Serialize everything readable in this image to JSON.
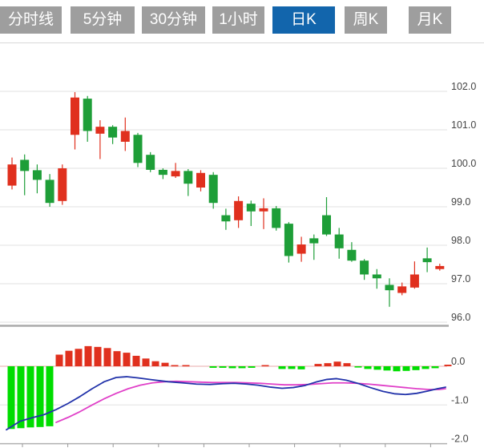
{
  "tabs": {
    "items": [
      {
        "label": "分时线",
        "active": false
      },
      {
        "label": "5分钟",
        "active": false
      },
      {
        "label": "30分钟",
        "active": false
      },
      {
        "label": "1小时",
        "active": false
      },
      {
        "label": "日K",
        "active": true
      },
      {
        "label": "周K",
        "active": false
      },
      {
        "label": "月K",
        "active": false
      }
    ],
    "active_bg": "#1265ac",
    "inactive_bg": "#9e9e9e",
    "text_color": "#ffffff"
  },
  "colors": {
    "up_red": "#e0301e",
    "down_green": "#1e9e38",
    "macd_bar_green": "#00dd00",
    "macd_bar_red": "#e0301e",
    "dif_line_blue": "#2233aa",
    "dea_line_magenta": "#e040c8",
    "gridline": "#e2e2e2",
    "zero_line": "#e8a8a8",
    "panel_border": "#aaaaaa",
    "axis_line": "#b0b0b0",
    "label_text": "#444444"
  },
  "price_panel": {
    "y_labels": [
      "102.0",
      "101.0",
      "100.0",
      "99.0",
      "98.0",
      "97.0",
      "96.0"
    ],
    "y_values": [
      102,
      101,
      100,
      99,
      98,
      97,
      96
    ]
  },
  "macd_panel": {
    "y_labels": [
      "0.0",
      "-1.0",
      "-2.0"
    ],
    "y_values": [
      0,
      -1,
      -2
    ]
  },
  "chart_data": {
    "type": "candlestick-with-macd",
    "price": {
      "ylim": [
        95.9,
        103.2
      ],
      "grid": true,
      "up_color_meaning": "red = close above open (CN convention)",
      "ohlc": [
        [
          99.55,
          100.28,
          99.45,
          100.1
        ],
        [
          100.22,
          100.36,
          99.3,
          99.93
        ],
        [
          99.95,
          100.1,
          99.35,
          99.7
        ],
        [
          99.7,
          99.85,
          99.0,
          99.1
        ],
        [
          99.15,
          100.1,
          99.05,
          100.0
        ],
        [
          100.87,
          101.98,
          100.49,
          101.84
        ],
        [
          101.81,
          101.88,
          100.69,
          100.97
        ],
        [
          100.9,
          101.25,
          100.24,
          101.08
        ],
        [
          101.08,
          101.12,
          100.63,
          100.8
        ],
        [
          100.69,
          101.32,
          100.45,
          100.97
        ],
        [
          100.87,
          100.92,
          100.03,
          100.14
        ],
        [
          100.35,
          100.42,
          99.9,
          99.96
        ],
        [
          99.96,
          100.0,
          99.72,
          99.83
        ],
        [
          99.79,
          100.14,
          99.75,
          99.93
        ],
        [
          99.93,
          99.98,
          99.28,
          99.6
        ],
        [
          99.5,
          99.95,
          99.4,
          99.88
        ],
        [
          99.83,
          99.9,
          98.95,
          99.1
        ],
        [
          98.78,
          98.95,
          98.4,
          98.62
        ],
        [
          98.65,
          99.27,
          98.45,
          99.15
        ],
        [
          99.08,
          99.16,
          98.5,
          98.88
        ],
        [
          98.88,
          99.22,
          98.42,
          98.96
        ],
        [
          98.96,
          99.02,
          98.38,
          98.45
        ],
        [
          98.56,
          98.6,
          97.55,
          97.72
        ],
        [
          97.78,
          98.22,
          97.57,
          98.02
        ],
        [
          98.18,
          98.28,
          97.62,
          98.05
        ],
        [
          98.78,
          99.25,
          98.24,
          98.28
        ],
        [
          98.28,
          98.45,
          97.65,
          97.92
        ],
        [
          97.88,
          98.08,
          97.57,
          97.6
        ],
        [
          97.6,
          97.64,
          97.1,
          97.24
        ],
        [
          97.24,
          97.38,
          96.87,
          97.14
        ],
        [
          96.97,
          97.14,
          96.4,
          96.83
        ],
        [
          96.76,
          97.03,
          96.7,
          96.93
        ],
        [
          96.9,
          97.58,
          96.87,
          97.24
        ],
        [
          97.66,
          97.94,
          97.3,
          97.56
        ],
        [
          97.38,
          97.52,
          97.34,
          97.46
        ]
      ]
    },
    "macd": {
      "ylim": [
        -2.1,
        0.6
      ],
      "bars": [
        [
          14,
          -1.62
        ],
        [
          26,
          -1.6
        ],
        [
          38,
          -1.58
        ],
        [
          50,
          -1.57
        ],
        [
          62,
          -1.55
        ],
        [
          74,
          0.3
        ],
        [
          86,
          0.4
        ],
        [
          98,
          0.45
        ],
        [
          110,
          0.52
        ],
        [
          122,
          0.5
        ],
        [
          134,
          0.47
        ],
        [
          146,
          0.39
        ],
        [
          158,
          0.35
        ],
        [
          170,
          0.27
        ],
        [
          182,
          0.2
        ],
        [
          194,
          0.13
        ],
        [
          206,
          0.09
        ],
        [
          218,
          0.03
        ],
        [
          232,
          0.03
        ],
        [
          266,
          -0.04
        ],
        [
          278,
          -0.04
        ],
        [
          290,
          -0.05
        ],
        [
          302,
          -0.05
        ],
        [
          314,
          -0.04
        ],
        [
          331,
          0.03
        ],
        [
          352,
          -0.07
        ],
        [
          364,
          -0.07
        ],
        [
          376,
          -0.08
        ],
        [
          397,
          0.06
        ],
        [
          409,
          0.08
        ],
        [
          421,
          0.12
        ],
        [
          433,
          0.08
        ],
        [
          447,
          -0.03
        ],
        [
          459,
          -0.07
        ],
        [
          471,
          -0.09
        ],
        [
          483,
          -0.11
        ],
        [
          495,
          -0.13
        ],
        [
          507,
          -0.12
        ],
        [
          519,
          -0.1
        ],
        [
          531,
          -0.07
        ],
        [
          543,
          -0.05
        ],
        [
          559,
          0.04
        ]
      ],
      "dif": [
        [
          8,
          -1.64
        ],
        [
          25,
          -1.42
        ],
        [
          40,
          -1.33
        ],
        [
          55,
          -1.25
        ],
        [
          70,
          -1.12
        ],
        [
          85,
          -0.96
        ],
        [
          100,
          -0.78
        ],
        [
          115,
          -0.58
        ],
        [
          130,
          -0.4
        ],
        [
          145,
          -0.29
        ],
        [
          158,
          -0.27
        ],
        [
          172,
          -0.3
        ],
        [
          190,
          -0.35
        ],
        [
          210,
          -0.4
        ],
        [
          228,
          -0.43
        ],
        [
          245,
          -0.46
        ],
        [
          262,
          -0.47
        ],
        [
          278,
          -0.45
        ],
        [
          292,
          -0.44
        ],
        [
          308,
          -0.46
        ],
        [
          322,
          -0.49
        ],
        [
          338,
          -0.54
        ],
        [
          352,
          -0.57
        ],
        [
          366,
          -0.55
        ],
        [
          380,
          -0.5
        ],
        [
          394,
          -0.41
        ],
        [
          408,
          -0.34
        ],
        [
          420,
          -0.32
        ],
        [
          432,
          -0.36
        ],
        [
          448,
          -0.45
        ],
        [
          462,
          -0.55
        ],
        [
          478,
          -0.65
        ],
        [
          492,
          -0.71
        ],
        [
          506,
          -0.73
        ],
        [
          520,
          -0.7
        ],
        [
          534,
          -0.64
        ],
        [
          546,
          -0.58
        ],
        [
          556,
          -0.54
        ]
      ],
      "dea": [
        [
          70,
          -1.45
        ],
        [
          85,
          -1.32
        ],
        [
          100,
          -1.17
        ],
        [
          115,
          -1.0
        ],
        [
          130,
          -0.84
        ],
        [
          145,
          -0.7
        ],
        [
          160,
          -0.58
        ],
        [
          175,
          -0.49
        ],
        [
          190,
          -0.43
        ],
        [
          205,
          -0.4
        ],
        [
          220,
          -0.39
        ],
        [
          235,
          -0.4
        ],
        [
          250,
          -0.41
        ],
        [
          265,
          -0.42
        ],
        [
          280,
          -0.42
        ],
        [
          295,
          -0.42
        ],
        [
          310,
          -0.43
        ],
        [
          325,
          -0.44
        ],
        [
          340,
          -0.46
        ],
        [
          355,
          -0.48
        ],
        [
          370,
          -0.48
        ],
        [
          385,
          -0.47
        ],
        [
          400,
          -0.45
        ],
        [
          415,
          -0.43
        ],
        [
          430,
          -0.43
        ],
        [
          445,
          -0.44
        ],
        [
          460,
          -0.46
        ],
        [
          475,
          -0.49
        ],
        [
          490,
          -0.52
        ],
        [
          505,
          -0.55
        ],
        [
          520,
          -0.58
        ],
        [
          535,
          -0.6
        ],
        [
          548,
          -0.6
        ],
        [
          556,
          -0.58
        ]
      ]
    }
  }
}
